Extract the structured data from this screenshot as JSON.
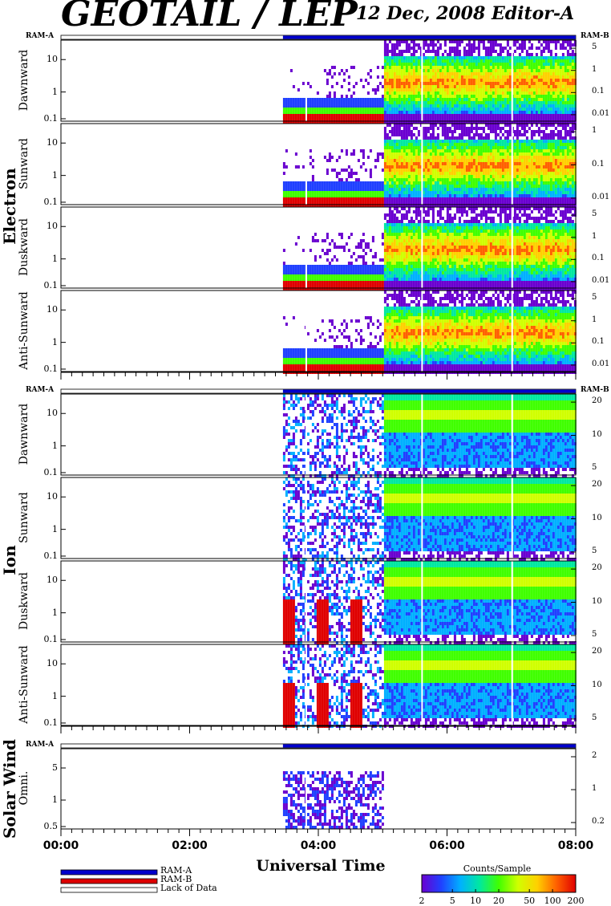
{
  "header": {
    "title": "GEOTAIL / LEP",
    "subtitle": "12 Dec, 2008   Editor-A"
  },
  "chart_data": {
    "type": "heatmap",
    "x_axis": {
      "label": "Universal Time",
      "ticks": [
        "00:00",
        "02:00",
        "04:00",
        "06:00",
        "08:00"
      ],
      "range_hours": [
        0,
        8
      ]
    },
    "data_start_hour": 3.45,
    "mode_bars": {
      "left_label": "RAM-A",
      "right_label": "RAM-B"
    },
    "groups": [
      {
        "name": "Electron",
        "right_scale": "log",
        "panels": [
          {
            "label": "Dawnward",
            "left_ticks": [
              "10",
              "1",
              "0.1"
            ],
            "right_ticks": [
              "5",
              "1",
              "0.1",
              "0.01"
            ]
          },
          {
            "label": "Sunward",
            "left_ticks": [
              "10",
              "1",
              "0.1"
            ],
            "right_ticks": [
              "1",
              "0.1",
              "0.01"
            ]
          },
          {
            "label": "Duskward",
            "left_ticks": [
              "10",
              "1",
              "0.1"
            ],
            "right_ticks": [
              "5",
              "1",
              "0.1",
              "0.01"
            ]
          },
          {
            "label": "Anti-Sunward",
            "left_ticks": [
              "10",
              "1",
              "0.1"
            ],
            "right_ticks": [
              "5",
              "1",
              "0.1",
              "0.01"
            ]
          }
        ]
      },
      {
        "name": "Ion",
        "right_scale": "linear",
        "panels": [
          {
            "label": "Dawnward",
            "left_ticks": [
              "10",
              "1",
              "0.1"
            ],
            "right_ticks": [
              "20",
              "10",
              "5"
            ]
          },
          {
            "label": "Sunward",
            "left_ticks": [
              "10",
              "1",
              "0.1"
            ],
            "right_ticks": [
              "20",
              "10",
              "5"
            ]
          },
          {
            "label": "Duskward",
            "left_ticks": [
              "10",
              "1",
              "0.1"
            ],
            "right_ticks": [
              "20",
              "10",
              "5"
            ]
          },
          {
            "label": "Anti-Sunward",
            "left_ticks": [
              "10",
              "1",
              "0.1"
            ],
            "right_ticks": [
              "20",
              "10",
              "5"
            ]
          }
        ]
      },
      {
        "name": "Solar Wind",
        "right_scale": "log",
        "panels": [
          {
            "label": "Omni.",
            "left_ticks": [
              "5",
              "1",
              "0.5"
            ],
            "right_ticks": [
              "2",
              "1",
              "0.2"
            ]
          }
        ]
      }
    ],
    "legend": [
      {
        "label": "RAM-A",
        "color": "#0000cc"
      },
      {
        "label": "RAM-B",
        "color": "#dd0000"
      },
      {
        "label": "Lack of Data",
        "color": "#ffffff"
      }
    ],
    "colorbar": {
      "title": "Counts/Sample",
      "ticks": [
        "2",
        "5",
        "10",
        "20",
        "50",
        "100",
        "200"
      ],
      "colors": [
        "#6a00d0",
        "#2040ff",
        "#00b0ff",
        "#00e8a0",
        "#40ff00",
        "#d0ff00",
        "#ffd000",
        "#ff6000",
        "#e00000"
      ]
    }
  }
}
